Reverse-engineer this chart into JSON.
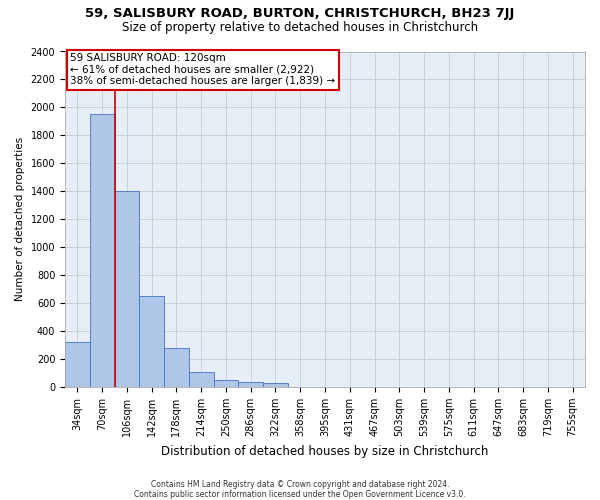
{
  "title1": "59, SALISBURY ROAD, BURTON, CHRISTCHURCH, BH23 7JJ",
  "title2": "Size of property relative to detached houses in Christchurch",
  "xlabel": "Distribution of detached houses by size in Christchurch",
  "ylabel": "Number of detached properties",
  "footnote": "Contains HM Land Registry data © Crown copyright and database right 2024.\nContains public sector information licensed under the Open Government Licence v3.0.",
  "bin_labels": [
    "34sqm",
    "70sqm",
    "106sqm",
    "142sqm",
    "178sqm",
    "214sqm",
    "250sqm",
    "286sqm",
    "322sqm",
    "358sqm",
    "395sqm",
    "431sqm",
    "467sqm",
    "503sqm",
    "539sqm",
    "575sqm",
    "611sqm",
    "647sqm",
    "683sqm",
    "719sqm",
    "755sqm"
  ],
  "bar_values": [
    325,
    1950,
    1400,
    650,
    280,
    105,
    50,
    38,
    25,
    0,
    0,
    0,
    0,
    0,
    0,
    0,
    0,
    0,
    0,
    0,
    0
  ],
  "bar_color": "#aec6e8",
  "bar_edge_color": "#4472c4",
  "property_line_x": 2,
  "annotation_text": "59 SALISBURY ROAD: 120sqm\n← 61% of detached houses are smaller (2,922)\n38% of semi-detached houses are larger (1,839) →",
  "annotation_box_color": "#ffffff",
  "annotation_box_edge_color": "#cc0000",
  "red_line_color": "#cc0000",
  "ylim": [
    0,
    2400
  ],
  "yticks": [
    0,
    200,
    400,
    600,
    800,
    1000,
    1200,
    1400,
    1600,
    1800,
    2000,
    2200,
    2400
  ],
  "grid_color": "#c8d0dc",
  "bg_color": "#e8eef8",
  "title1_fontsize": 9.5,
  "title2_fontsize": 8.5,
  "xlabel_fontsize": 8.5,
  "ylabel_fontsize": 7.5,
  "tick_fontsize": 7,
  "annotation_fontsize": 7.5,
  "footnote_fontsize": 5.5
}
